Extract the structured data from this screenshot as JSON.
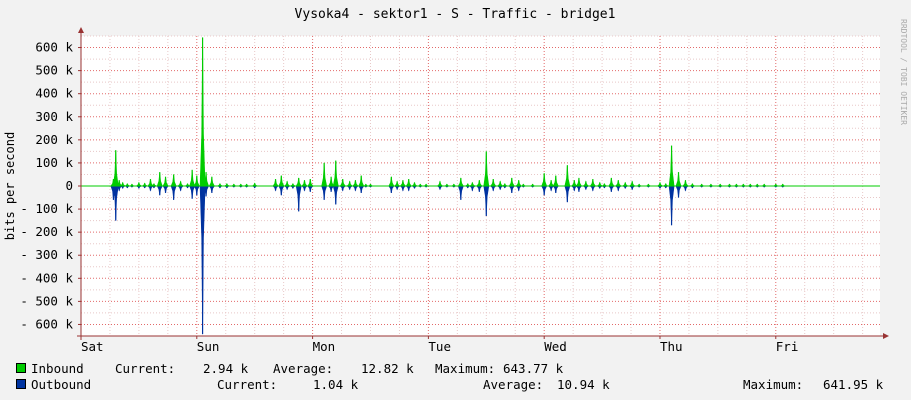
{
  "colors": {
    "inbound": "#00cc00",
    "outbound": "#0033a0",
    "background": "#f2f2f2",
    "canvas": "#ffffff",
    "grid_minor": "#e8c8c8",
    "grid_major": "#e26a6a",
    "axis": "#993333"
  },
  "watermark": "RRDTOOL / TOBI OETIKER",
  "legend": {
    "inbound": {
      "name": "Inbound",
      "current_label": "Current:",
      "current": "2.94 k",
      "average_label": "Average:",
      "average": "12.82 k",
      "maximum_label": "Maximum:",
      "maximum": "643.77 k"
    },
    "outbound": {
      "name": "Outbound",
      "current_label": "Current:",
      "current": "1.04 k",
      "average_label": "Average:",
      "average": "10.94 k",
      "maximum_label": "Maximum:",
      "maximum": "641.95 k"
    }
  },
  "chart_data": {
    "type": "area",
    "title": "Vysoka4 - sektor1 - S - Traffic - bridge1",
    "ylabel": "bits per second",
    "xlabel": "",
    "ylim": [
      -650,
      650
    ],
    "y_unit": "k",
    "y_ticks": [
      -600,
      -500,
      -400,
      -300,
      -200,
      -100,
      0,
      100,
      200,
      300,
      400,
      500,
      600
    ],
    "y_tick_labels": [
      "- 600 k",
      "- 500 k",
      "- 400 k",
      "- 300 k",
      "- 200 k",
      "- 100 k",
      "0",
      "100 k",
      "200 k",
      "300 k",
      "400 k",
      "500 k",
      "600 k"
    ],
    "x_unit": "days",
    "xlim": [
      0,
      6.9
    ],
    "x_ticks": [
      0,
      1,
      2,
      3,
      4,
      5,
      6
    ],
    "x_tick_labels": [
      "Sat",
      "Sun",
      "Mon",
      "Tue",
      "Wed",
      "Thu",
      "Fri"
    ],
    "grid": true,
    "series": [
      {
        "name": "Inbound",
        "color": "#00cc00",
        "x": [
          0.28,
          0.3,
          0.33,
          0.36,
          0.4,
          0.44,
          0.5,
          0.55,
          0.6,
          0.63,
          0.68,
          0.73,
          0.8,
          0.86,
          0.92,
          0.96,
          1.0,
          1.05,
          1.08,
          1.13,
          1.2,
          1.26,
          1.32,
          1.38,
          1.43,
          1.5,
          1.68,
          1.73,
          1.78,
          1.83,
          1.88,
          1.93,
          1.98,
          2.1,
          2.16,
          2.2,
          2.26,
          2.32,
          2.37,
          2.42,
          2.46,
          2.5,
          2.68,
          2.73,
          2.78,
          2.83,
          2.88,
          2.93,
          2.98,
          3.1,
          3.16,
          3.22,
          3.28,
          3.34,
          3.38,
          3.44,
          3.5,
          3.56,
          3.62,
          3.66,
          3.72,
          3.78,
          3.82,
          3.9,
          4.0,
          4.06,
          4.1,
          4.2,
          4.26,
          4.3,
          4.36,
          4.42,
          4.48,
          4.52,
          4.58,
          4.64,
          4.7,
          4.76,
          4.82,
          4.9,
          5.0,
          5.05,
          5.1,
          5.16,
          5.22,
          5.28,
          5.36,
          5.44,
          5.52,
          5.6,
          5.66,
          5.72,
          5.78,
          5.84,
          5.9,
          6.0,
          6.06
        ],
        "y": [
          30,
          155,
          25,
          15,
          10,
          8,
          15,
          12,
          30,
          10,
          60,
          40,
          50,
          20,
          10,
          70,
          45,
          643.77,
          60,
          40,
          10,
          10,
          8,
          8,
          8,
          12,
          30,
          45,
          20,
          10,
          35,
          25,
          30,
          100,
          40,
          110,
          30,
          20,
          25,
          45,
          8,
          8,
          40,
          20,
          25,
          30,
          15,
          8,
          8,
          20,
          8,
          8,
          35,
          10,
          15,
          25,
          150,
          30,
          20,
          10,
          35,
          25,
          8,
          8,
          55,
          25,
          45,
          90,
          25,
          35,
          20,
          30,
          15,
          10,
          35,
          25,
          15,
          20,
          8,
          8,
          15,
          10,
          175,
          60,
          25,
          10,
          8,
          8,
          8,
          8,
          8,
          8,
          8,
          8,
          8,
          8,
          8
        ]
      },
      {
        "name": "Outbound",
        "color": "#0033a0",
        "x": [
          0.28,
          0.3,
          0.33,
          0.36,
          0.4,
          0.44,
          0.5,
          0.55,
          0.6,
          0.63,
          0.68,
          0.73,
          0.8,
          0.86,
          0.92,
          0.96,
          1.0,
          1.05,
          1.08,
          1.13,
          1.2,
          1.26,
          1.32,
          1.38,
          1.43,
          1.5,
          1.68,
          1.73,
          1.78,
          1.83,
          1.88,
          1.93,
          1.98,
          2.1,
          2.16,
          2.2,
          2.26,
          2.32,
          2.37,
          2.42,
          2.46,
          2.5,
          2.68,
          2.73,
          2.78,
          2.83,
          2.88,
          2.93,
          2.98,
          3.1,
          3.16,
          3.22,
          3.28,
          3.34,
          3.38,
          3.44,
          3.5,
          3.56,
          3.62,
          3.66,
          3.72,
          3.78,
          3.82,
          3.9,
          4.0,
          4.06,
          4.1,
          4.2,
          4.26,
          4.3,
          4.36,
          4.42,
          4.48,
          4.52,
          4.58,
          4.64,
          4.7,
          4.76,
          4.82,
          4.9,
          5.0,
          5.05,
          5.1,
          5.16,
          5.22,
          5.28,
          5.36,
          5.44,
          5.52,
          5.6,
          5.66,
          5.72,
          5.78,
          5.84,
          5.9,
          6.0,
          6.06
        ],
        "y": [
          -60,
          -150,
          -20,
          -10,
          -8,
          -5,
          -10,
          -8,
          -20,
          -8,
          -40,
          -30,
          -60,
          -20,
          -8,
          -55,
          -40,
          -641.95,
          -45,
          -30,
          -8,
          -8,
          -5,
          -5,
          -5,
          -8,
          -20,
          -40,
          -15,
          -10,
          -110,
          -20,
          -25,
          -60,
          -25,
          -80,
          -20,
          -15,
          -20,
          -30,
          -5,
          -5,
          -30,
          -15,
          -20,
          -20,
          -10,
          -5,
          -5,
          -15,
          -5,
          -5,
          -60,
          -8,
          -20,
          -25,
          -130,
          -20,
          -15,
          -8,
          -30,
          -20,
          -5,
          -5,
          -40,
          -20,
          -30,
          -70,
          -20,
          -25,
          -15,
          -20,
          -10,
          -8,
          -25,
          -20,
          -10,
          -15,
          -5,
          -5,
          -10,
          -8,
          -170,
          -50,
          -20,
          -8,
          -5,
          -5,
          -5,
          -5,
          -5,
          -5,
          -5,
          -5,
          -5,
          -5,
          -5
        ]
      }
    ]
  }
}
